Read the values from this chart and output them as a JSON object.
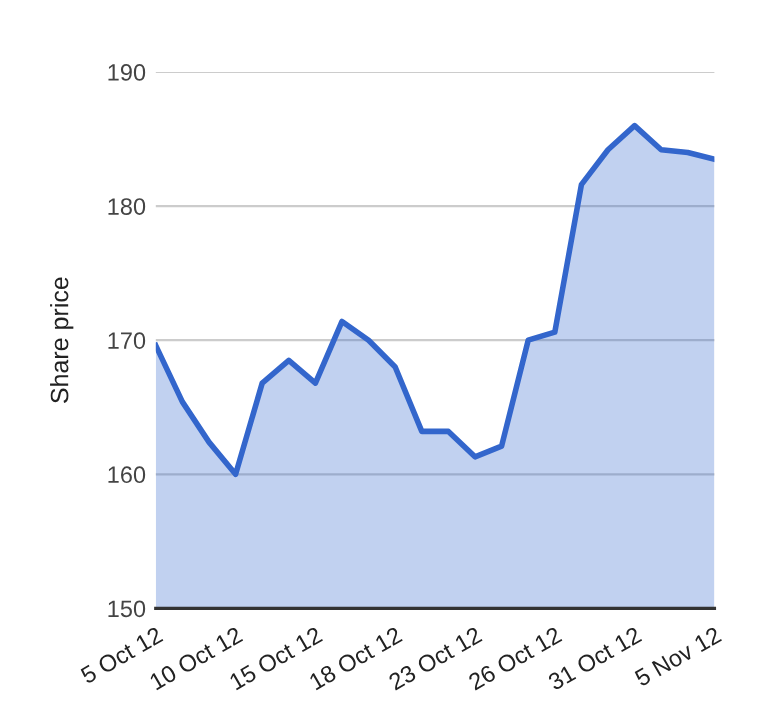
{
  "chart_data": {
    "type": "area",
    "ylabel": "Share price",
    "categories": [
      "5 Oct 12",
      null,
      null,
      "10 Oct 12",
      null,
      null,
      "15 Oct 12",
      null,
      null,
      "18 Oct 12",
      null,
      null,
      "23 Oct 12",
      null,
      null,
      "26 Oct 12",
      null,
      null,
      "31 Oct 12",
      null,
      null,
      "5 Nov 12"
    ],
    "series": [
      {
        "color": "#3366cc",
        "values": [
          169.6,
          165.4,
          162.4,
          160.0,
          166.8,
          168.5,
          166.8,
          171.4,
          170.0,
          168.0,
          163.2,
          163.2,
          161.3,
          162.1,
          170.0,
          170.6,
          181.6,
          184.2,
          186.0,
          184.2,
          184.0,
          183.5
        ]
      }
    ],
    "ylim": [
      150,
      190
    ],
    "yticks": [
      150,
      160,
      170,
      180,
      190
    ],
    "grid": "y"
  }
}
